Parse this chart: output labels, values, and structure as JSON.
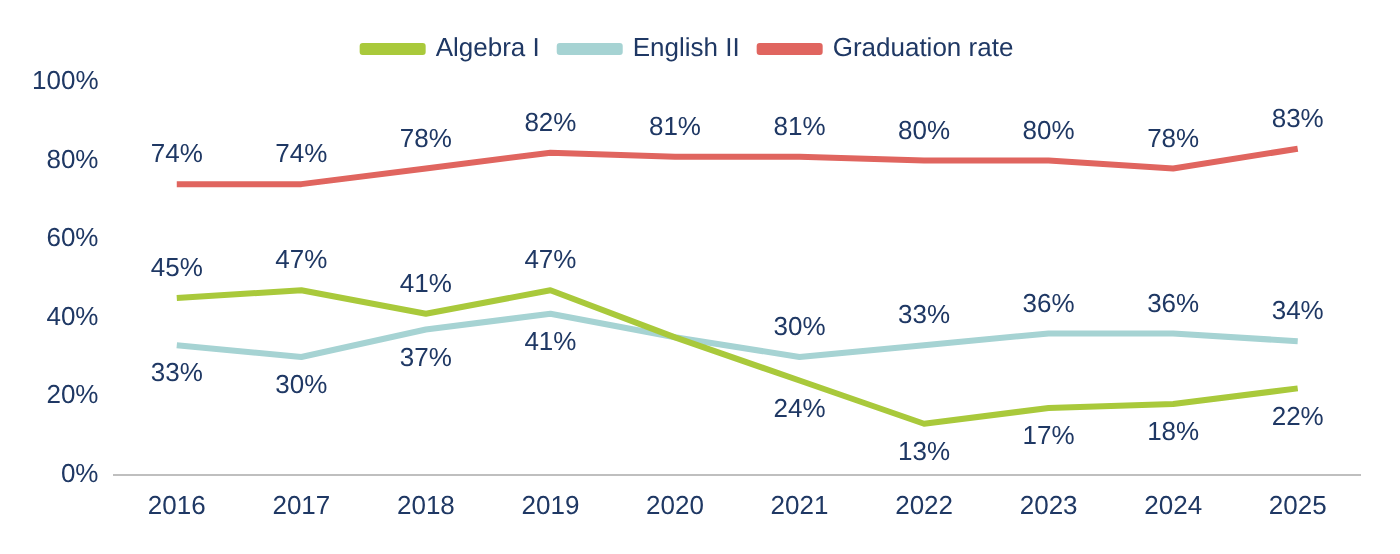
{
  "chart_data": {
    "type": "line",
    "categories": [
      "2016",
      "2017",
      "2018",
      "2019",
      "2020",
      "2021",
      "2022",
      "2023",
      "2024",
      "2025"
    ],
    "series": [
      {
        "name": "Algebra I",
        "color": "#a9c93b",
        "values": [
          45,
          47,
          41,
          47,
          35,
          24,
          13,
          17,
          18,
          22
        ],
        "value_labels": [
          "45%",
          "47%",
          "41%",
          "47%",
          null,
          "24%",
          "13%",
          "17%",
          "18%",
          "22%"
        ]
      },
      {
        "name": "English II",
        "color": "#a6d3d3",
        "values": [
          33,
          30,
          37,
          41,
          35,
          30,
          33,
          36,
          36,
          34
        ],
        "value_labels": [
          "33%",
          "30%",
          "37%",
          "41%",
          null,
          "30%",
          "33%",
          "36%",
          "36%",
          "34%"
        ]
      },
      {
        "name": "Graduation rate",
        "color": "#e0655f",
        "values": [
          74,
          74,
          78,
          82,
          81,
          81,
          80,
          80,
          78,
          83
        ],
        "value_labels": [
          "74%",
          "74%",
          "78%",
          "82%",
          "81%",
          "81%",
          "80%",
          "80%",
          "78%",
          "83%"
        ]
      }
    ],
    "ylim": [
      0,
      100
    ],
    "yticks": [
      {
        "value": 0,
        "label": "0%"
      },
      {
        "value": 20,
        "label": "20%"
      },
      {
        "value": 40,
        "label": "40%"
      },
      {
        "value": 60,
        "label": "60%"
      },
      {
        "value": 80,
        "label": "80%"
      },
      {
        "value": 100,
        "label": "100%"
      }
    ],
    "grid": false,
    "legend": "top",
    "marker": "none",
    "line_style": "solid"
  }
}
